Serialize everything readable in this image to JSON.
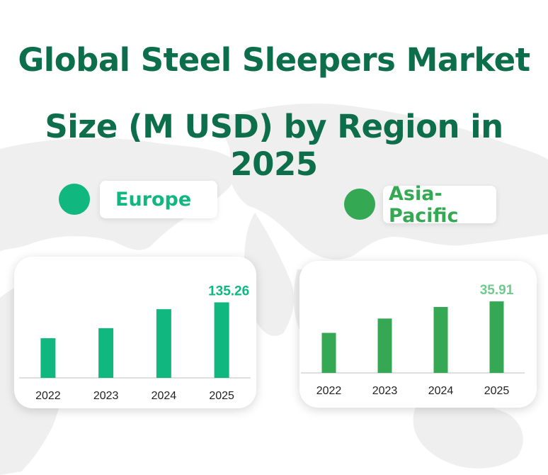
{
  "title_line1": "Global Steel Sleepers Market",
  "title_line2": "Size (M USD) by Region in 2025",
  "colors": {
    "title": "#0d6e4b",
    "europe": "#10b77f",
    "asia": "#35a853",
    "asia_value_label": "#6dcb8c",
    "axis": "#bfbfbf",
    "map": "#efefef"
  },
  "chart_data": [
    {
      "type": "bar",
      "title": "Europe",
      "categories": [
        "2022",
        "2023",
        "2024",
        "2025"
      ],
      "values": [
        71,
        89,
        123,
        135.26
      ],
      "value_labels": [
        "",
        "",
        "",
        "135.26"
      ],
      "ylim": [
        0,
        160
      ],
      "grid": false
    },
    {
      "type": "bar",
      "title": "Asia-Pacific",
      "categories": [
        "2022",
        "2023",
        "2024",
        "2025"
      ],
      "values": [
        20.1,
        27.3,
        33.1,
        35.91
      ],
      "value_labels": [
        "",
        "",
        "",
        "35.91"
      ],
      "ylim": [
        0,
        42
      ],
      "grid": false
    }
  ]
}
